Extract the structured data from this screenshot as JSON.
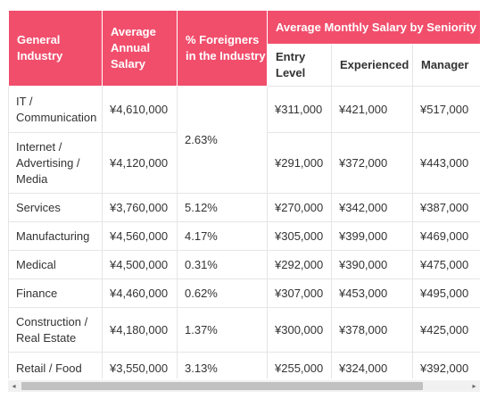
{
  "headers": {
    "industry": "General Industry",
    "annual": "Average Annual Salary",
    "foreigners": "% Foreigners in the Industry",
    "monthly_group": "Average Monthly Salary by Seniority",
    "entry": "Entry Level",
    "experienced": "Experienced",
    "manager": "Manager"
  },
  "rows": [
    {
      "industry": "IT / Communication",
      "annual": "¥4,610,000",
      "entry": "¥311,000",
      "experienced": "¥421,000",
      "manager": "¥517,000"
    },
    {
      "industry": "Internet / Advertising / Media",
      "annual": "¥4,120,000",
      "entry": "¥291,000",
      "experienced": "¥372,000",
      "manager": "¥443,000"
    },
    {
      "industry": "Services",
      "annual": "¥3,760,000",
      "foreigners": "5.12%",
      "entry": "¥270,000",
      "experienced": "¥342,000",
      "manager": "¥387,000"
    },
    {
      "industry": "Manufacturing",
      "annual": "¥4,560,000",
      "foreigners": "4.17%",
      "entry": "¥305,000",
      "experienced": "¥399,000",
      "manager": "¥469,000"
    },
    {
      "industry": "Medical",
      "annual": "¥4,500,000",
      "foreigners": "0.31%",
      "entry": "¥292,000",
      "experienced": "¥390,000",
      "manager": "¥475,000"
    },
    {
      "industry": "Finance",
      "annual": "¥4,460,000",
      "foreigners": "0.62%",
      "entry": "¥307,000",
      "experienced": "¥453,000",
      "manager": "¥495,000"
    },
    {
      "industry": "Construction / Real Estate",
      "annual": "¥4,180,000",
      "foreigners": "1.37%",
      "entry": "¥300,000",
      "experienced": "¥378,000",
      "manager": "¥425,000"
    },
    {
      "industry": "Retail / Food",
      "annual": "¥3,550,000",
      "foreigners": "3.13%",
      "entry": "¥255,000",
      "experienced": "¥324,000",
      "manager": "¥392,000"
    }
  ],
  "merged_foreigners": "2.63%",
  "scrollbar": {
    "left_arrow": "◂",
    "right_arrow": "▸"
  }
}
